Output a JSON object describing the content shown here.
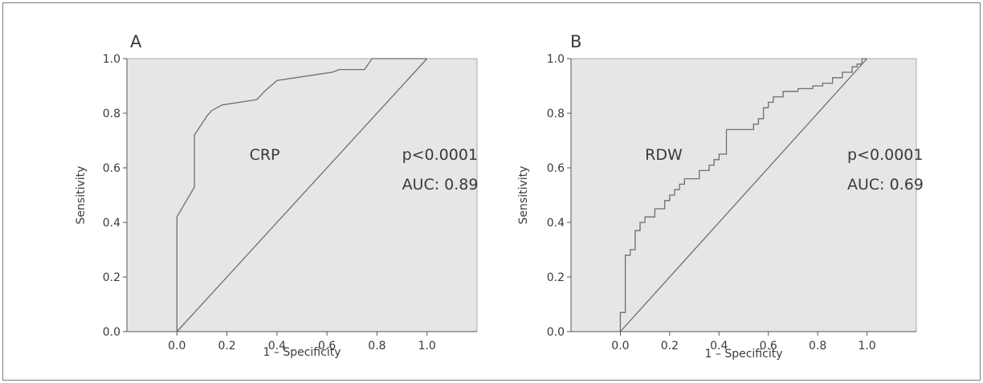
{
  "colors": {
    "plot_background": "#e6e6e6",
    "curve": "#6e6e6e",
    "reference_line": "#6e6e6e",
    "axis": "#555555",
    "text": "#3a3a3a"
  },
  "chart_data": [
    {
      "type": "line",
      "panel_label": "A",
      "title": "",
      "xlabel": "1 – Specificity",
      "ylabel": "Sensitivity",
      "xlim": [
        -0.2,
        1.2
      ],
      "ylim": [
        0,
        1
      ],
      "x_ticks": [
        0.0,
        0.2,
        0.4,
        0.6,
        0.8,
        1.0
      ],
      "x_tick_labels": [
        "0.0",
        "0.2",
        "0.4",
        "0.6",
        "0.8",
        "1.0"
      ],
      "y_ticks": [
        0.0,
        0.2,
        0.4,
        0.6,
        0.8,
        1.0
      ],
      "y_tick_labels": [
        "0.0",
        "0.2",
        "0.4",
        "0.6",
        "0.8",
        "1.0"
      ],
      "grid": false,
      "series": [
        {
          "name": "CRP",
          "x": [
            0.0,
            0.0,
            0.07,
            0.07,
            0.12,
            0.14,
            0.18,
            0.32,
            0.35,
            0.4,
            0.62,
            0.65,
            0.75,
            0.78,
            0.8,
            1.0
          ],
          "y": [
            0.0,
            0.42,
            0.53,
            0.72,
            0.79,
            0.81,
            0.83,
            0.85,
            0.88,
            0.92,
            0.95,
            0.96,
            0.96,
            1.0,
            1.0,
            1.0
          ]
        },
        {
          "name": "",
          "x": [
            0.0,
            1.0
          ],
          "y": [
            0.0,
            1.0
          ]
        }
      ],
      "annotations": [
        {
          "text": "CRP",
          "x": 0.29,
          "y": 0.63
        },
        {
          "text": "p<0.0001",
          "x": 0.9,
          "y": 0.63
        },
        {
          "text": "AUC: 0.89",
          "x": 0.9,
          "y": 0.52
        }
      ]
    },
    {
      "type": "line",
      "panel_label": "B",
      "title": "",
      "xlabel": "1 – Specificity",
      "ylabel": "Sensitivity",
      "xlim": [
        -0.2,
        1.2
      ],
      "ylim": [
        0,
        1
      ],
      "x_ticks": [
        0.0,
        0.2,
        0.4,
        0.6,
        0.8,
        1.0
      ],
      "x_tick_labels": [
        "0.0",
        "0.2",
        "0.4",
        "0.6",
        "0.8",
        "1.0"
      ],
      "y_ticks": [
        0.0,
        0.2,
        0.4,
        0.6,
        0.8,
        1.0
      ],
      "y_tick_labels": [
        "0.0",
        "0.2",
        "0.4",
        "0.6",
        "0.8",
        "1.0"
      ],
      "grid": false,
      "series": [
        {
          "name": "RDW",
          "x": [
            0.0,
            0.0,
            0.02,
            0.02,
            0.04,
            0.04,
            0.06,
            0.06,
            0.08,
            0.08,
            0.1,
            0.1,
            0.14,
            0.14,
            0.18,
            0.18,
            0.2,
            0.2,
            0.22,
            0.22,
            0.24,
            0.24,
            0.26,
            0.26,
            0.32,
            0.32,
            0.36,
            0.36,
            0.38,
            0.38,
            0.4,
            0.4,
            0.43,
            0.43,
            0.54,
            0.54,
            0.56,
            0.56,
            0.58,
            0.58,
            0.6,
            0.6,
            0.62,
            0.62,
            0.66,
            0.66,
            0.72,
            0.72,
            0.78,
            0.78,
            0.82,
            0.82,
            0.86,
            0.86,
            0.9,
            0.9,
            0.94,
            0.94,
            0.96,
            0.96,
            0.98,
            0.98,
            1.0
          ],
          "y": [
            0.0,
            0.07,
            0.07,
            0.28,
            0.28,
            0.3,
            0.3,
            0.37,
            0.37,
            0.4,
            0.4,
            0.42,
            0.42,
            0.45,
            0.45,
            0.48,
            0.48,
            0.5,
            0.5,
            0.52,
            0.52,
            0.54,
            0.54,
            0.56,
            0.56,
            0.59,
            0.59,
            0.61,
            0.61,
            0.63,
            0.63,
            0.65,
            0.65,
            0.74,
            0.74,
            0.76,
            0.76,
            0.78,
            0.78,
            0.82,
            0.82,
            0.84,
            0.84,
            0.86,
            0.86,
            0.88,
            0.88,
            0.89,
            0.89,
            0.9,
            0.9,
            0.91,
            0.91,
            0.93,
            0.93,
            0.95,
            0.95,
            0.97,
            0.97,
            0.98,
            0.98,
            1.0,
            1.0
          ]
        },
        {
          "name": "",
          "x": [
            0.0,
            1.0
          ],
          "y": [
            0.0,
            1.0
          ]
        }
      ],
      "annotations": [
        {
          "text": "RDW",
          "x": 0.1,
          "y": 0.63
        },
        {
          "text": "p<0.0001",
          "x": 0.92,
          "y": 0.63
        },
        {
          "text": "AUC: 0.69",
          "x": 0.92,
          "y": 0.52
        }
      ]
    }
  ]
}
